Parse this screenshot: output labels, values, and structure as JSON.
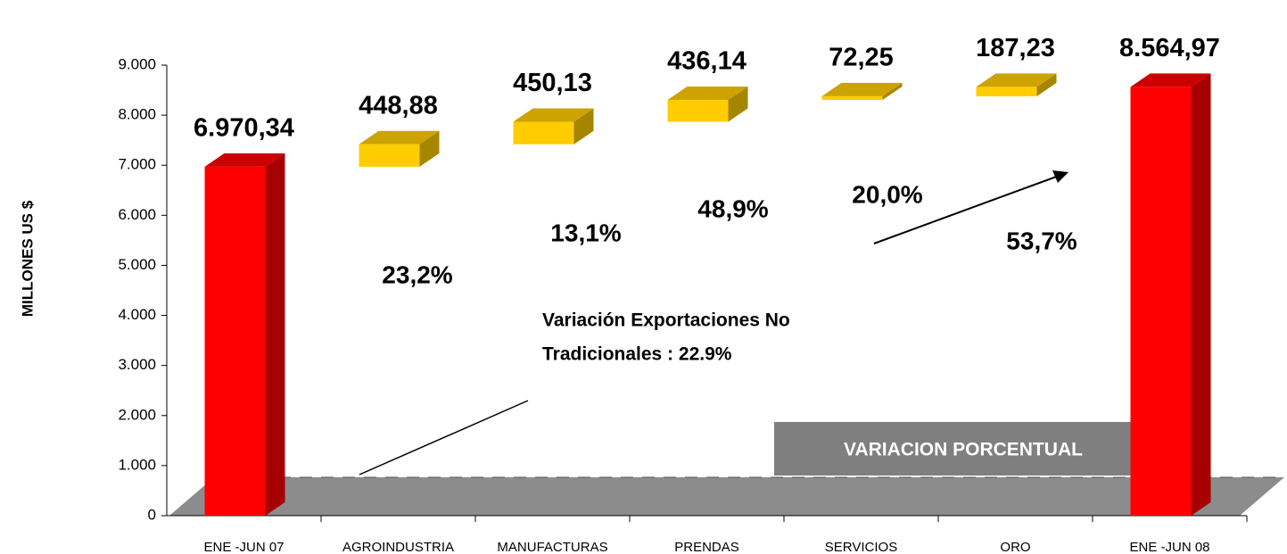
{
  "chart_data": {
    "type": "waterfall",
    "y_label": "MILLONES US $",
    "categories": [
      "ENE -JUN 07",
      "AGROINDUSTRIA",
      "MANUFACTURAS",
      "PRENDAS",
      "SERVICIOS",
      "ORO",
      "ENE -JUN 08"
    ],
    "values": [
      6970.34,
      448.88,
      450.13,
      436.14,
      72.25,
      187.23,
      8564.97
    ],
    "value_labels": [
      "6.970,34",
      "448,88",
      "450,13",
      "436,14",
      "72,25",
      "187,23",
      "8.564,97"
    ],
    "colors": [
      "#ff0000",
      "#ffcc00",
      "#ffcc00",
      "#ffcc00",
      "#ffcc00",
      "#ffcc00",
      "#ff0000"
    ],
    "ylim": [
      0,
      9000
    ],
    "yticks": [
      0,
      {
        "value": 1000,
        "label": "1.000"
      },
      {
        "value": 2000,
        "label": "2.000"
      },
      {
        "value": 3000,
        "label": "3.000"
      },
      {
        "value": 4000,
        "label": "4.000"
      },
      {
        "value": 5000,
        "label": "5.000"
      },
      {
        "value": 6000,
        "label": "6.000"
      },
      {
        "value": 7000,
        "label": "7.000"
      },
      {
        "value": 8000,
        "label": "8.000"
      },
      {
        "value": 9000,
        "label": "9.000"
      }
    ],
    "percent_labels": [
      "23,2%",
      "13,1%",
      "48,9%",
      "20,0%",
      "53,7%"
    ],
    "annotation": [
      "Variación Exportaciones No",
      "Tradicionales : 22.9%"
    ],
    "box_label": "VARIACION PORCENTUAL"
  }
}
